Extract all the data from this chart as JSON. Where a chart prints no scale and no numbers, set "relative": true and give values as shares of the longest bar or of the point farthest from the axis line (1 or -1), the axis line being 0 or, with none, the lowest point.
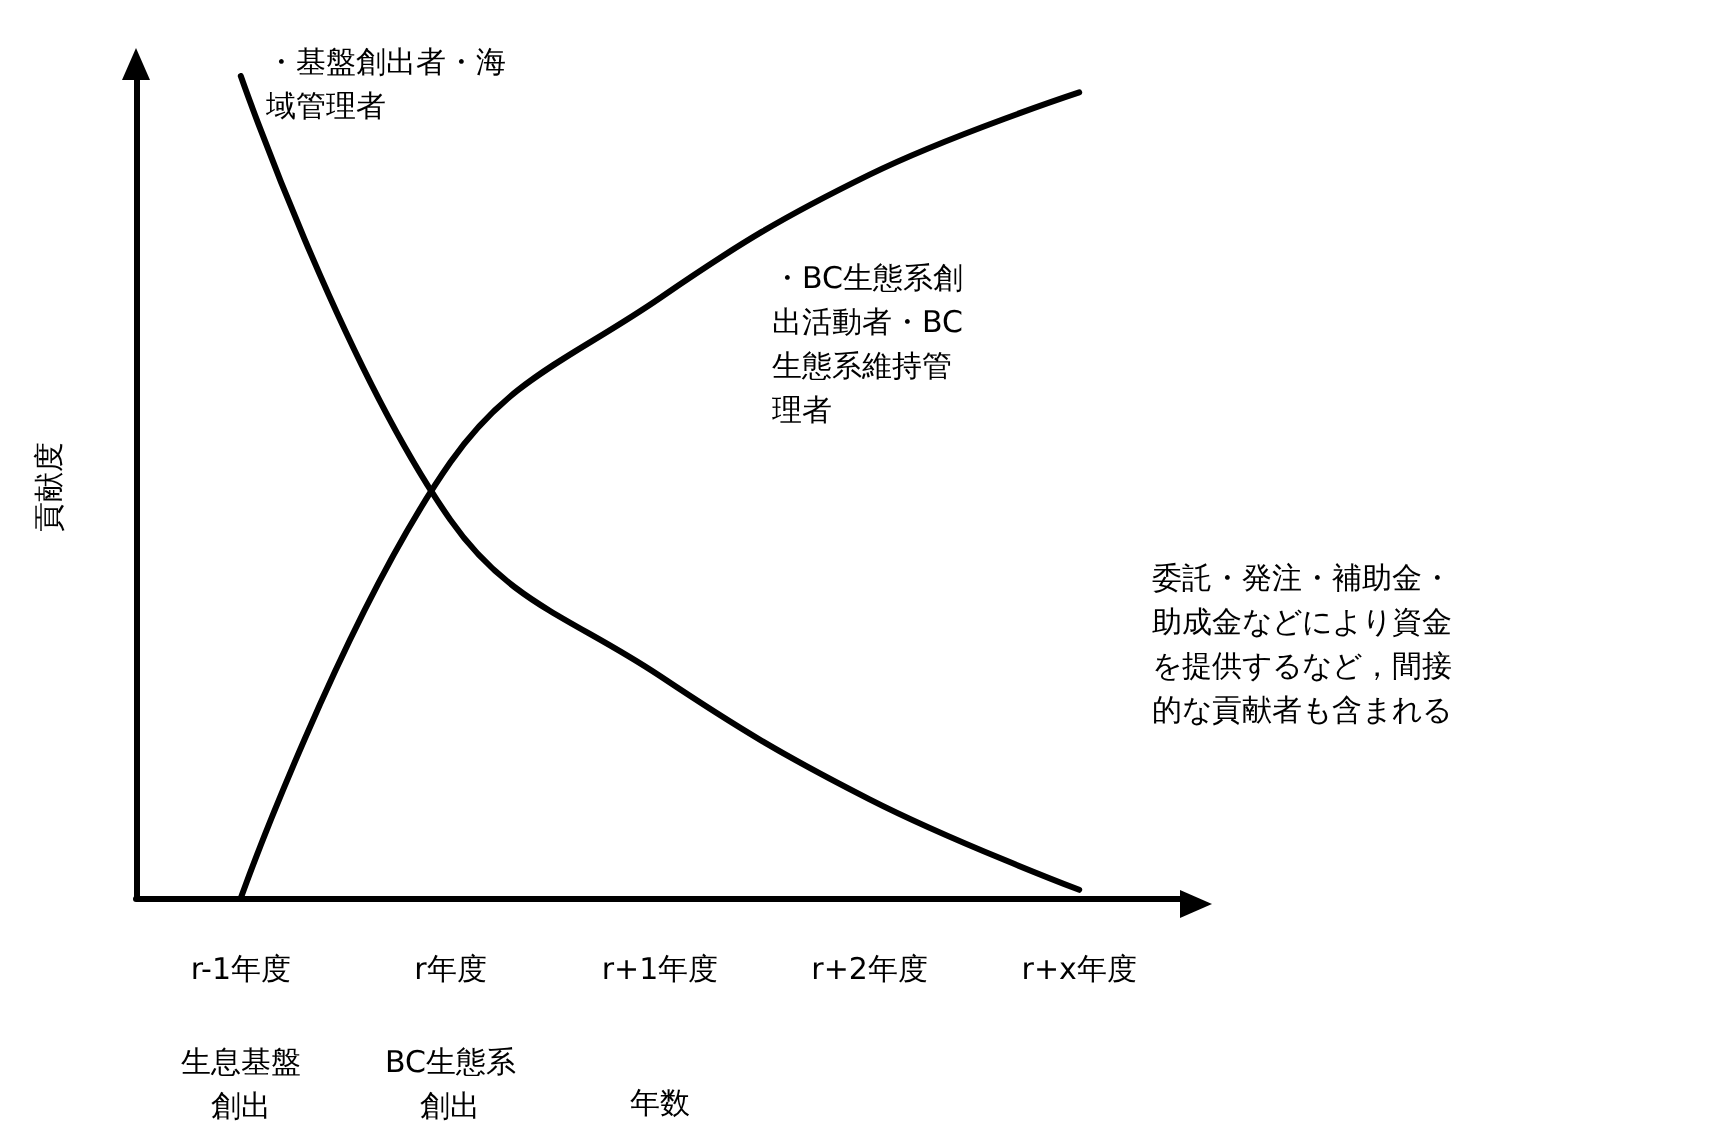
{
  "chart_data": {
    "type": "line",
    "relative": true,
    "xlabel": "年数",
    "ylabel": "貢献度",
    "categories": [
      "r-1年度",
      "r年度",
      "r+1年度",
      "r+2年度",
      "r+x年度"
    ],
    "series": [
      {
        "name": "・基盤創出者・海域管理者",
        "color": "#000000",
        "values": [
          1,
          0.46,
          0.27,
          0.12,
          0.01
        ]
      },
      {
        "name": "・BC生態系創出活動者・BC生態系維持管理者",
        "color": "#000000",
        "values": [
          0,
          0.53,
          0.73,
          0.88,
          0.98
        ]
      }
    ],
    "annotations": [
      "生息基盤創出",
      "BC生態系創出",
      "委託・発注・補助金・助成金などにより資金を提供するなど，間接的な貢献者も含まれる"
    ],
    "legend": false,
    "grid": false,
    "marker": "none",
    "line_style": "solid"
  }
}
